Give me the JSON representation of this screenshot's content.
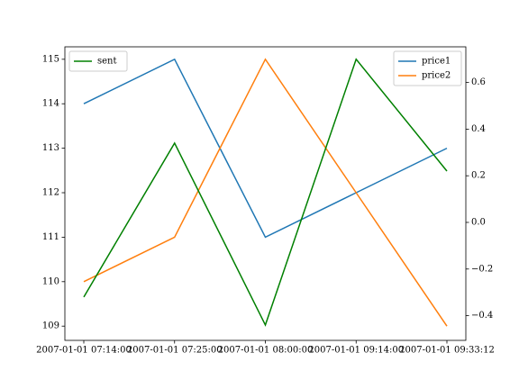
{
  "chart_data": {
    "type": "line",
    "categories": [
      "2007-01-01 07:14:00",
      "2007-01-01 07:25:00",
      "2007-01-01 08:00:00",
      "2007-01-01 09:14:00",
      "2007-01-01 09:33:12"
    ],
    "series": [
      {
        "name": "price1",
        "color": "#1f77b4",
        "values": [
          114,
          115,
          111,
          112,
          113
        ]
      },
      {
        "name": "price2",
        "color": "#ff7f0e",
        "values": [
          110,
          111,
          115,
          112,
          109
        ]
      },
      {
        "name": "sent",
        "color": "#008000",
        "axis": "y2",
        "values": [
          -0.32,
          0.34,
          -0.44,
          0.7,
          0.22
        ]
      }
    ],
    "ylim": [
      108.68,
      115.28
    ],
    "yticks": [
      109,
      110,
      111,
      112,
      113,
      114,
      115
    ],
    "y2lim": [
      -0.506,
      0.753
    ],
    "y2ticks": [
      {
        "value": -0.4,
        "label": "−0.4"
      },
      {
        "value": -0.2,
        "label": "−0.2"
      },
      {
        "value": 0,
        "label": "0.0"
      },
      0.2,
      0.4,
      0.6
    ],
    "legend": "upper right",
    "y2_legend": "upper left",
    "grid": false
  }
}
